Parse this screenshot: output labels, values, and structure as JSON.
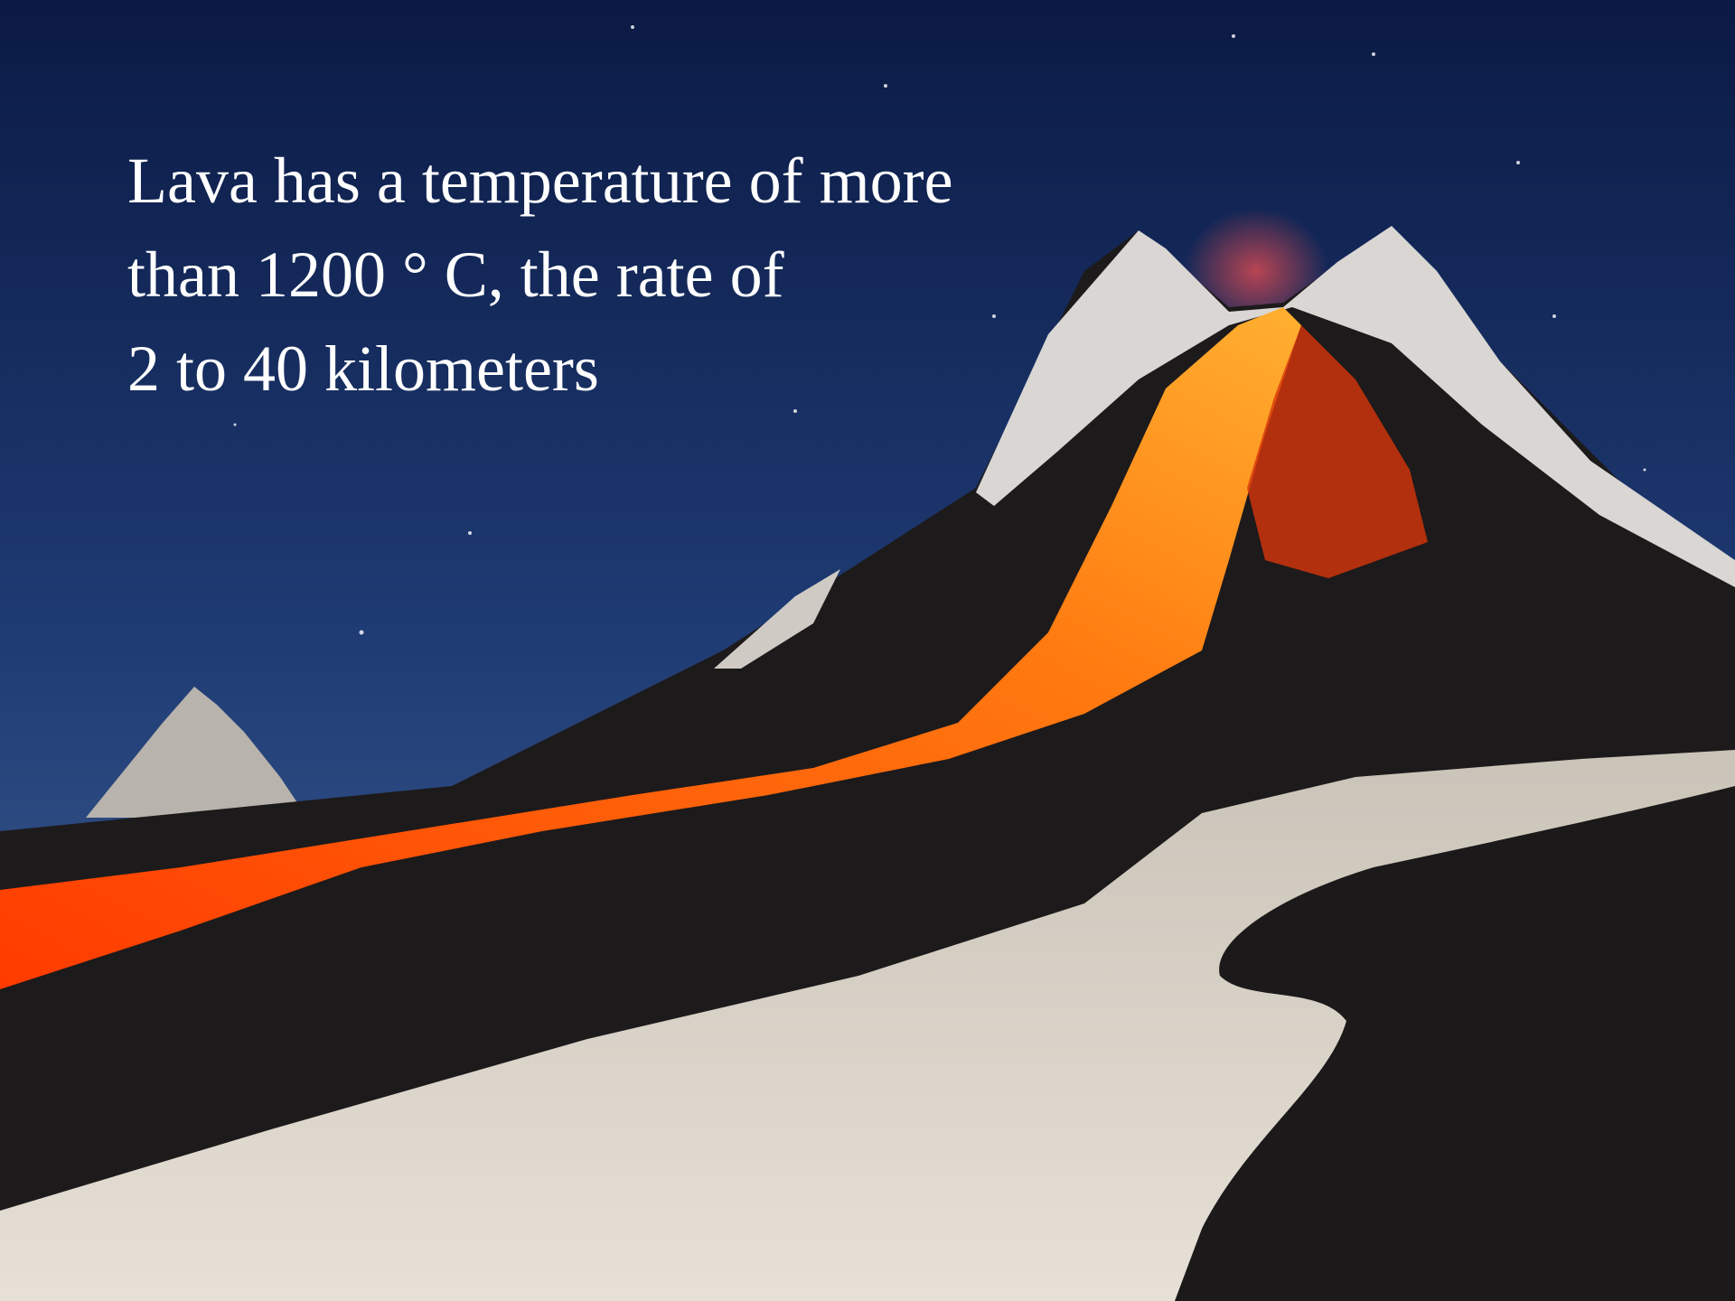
{
  "text": {
    "lines": [
      "Lava has a temperature of more",
      "than 1200 ° C, the rate of",
      "2 to 40 kilometers"
    ]
  }
}
